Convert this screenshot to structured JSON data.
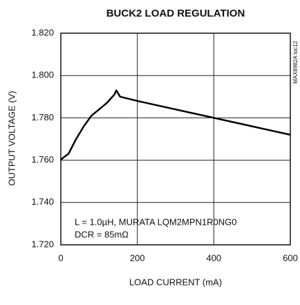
{
  "chart_data": {
    "type": "line",
    "title": "BUCK2 LOAD REGULATION",
    "xlabel": "LOAD CURRENT (mA)",
    "ylabel": "OUTPUT VOLTAGE (V)",
    "annotations": [
      "L = 1.0µH, MURATA LQM2MPN1R0NG0",
      "DCR = 85mΩ"
    ],
    "side_note": "MAX8982A toc12",
    "x": [
      0,
      5,
      20,
      40,
      60,
      80,
      100,
      120,
      140,
      145,
      155,
      200,
      300,
      400,
      500,
      600
    ],
    "series": [
      {
        "name": null,
        "color": "#000000",
        "values": [
          1.76,
          1.761,
          1.763,
          1.77,
          1.776,
          1.781,
          1.784,
          1.787,
          1.791,
          1.793,
          1.79,
          1.788,
          1.784,
          1.78,
          1.776,
          1.772
        ]
      }
    ],
    "xlim": [
      0,
      600
    ],
    "xticks": [
      0,
      200,
      400,
      600
    ],
    "ylim": [
      1.72,
      1.82
    ],
    "yticks": [
      {
        "value": 1.72,
        "label": "1.720"
      },
      {
        "value": 1.74,
        "label": "1.740"
      },
      {
        "value": 1.76,
        "label": "1.760"
      },
      {
        "value": 1.78,
        "label": "1.780"
      },
      {
        "value": 1.8,
        "label": "1.800"
      },
      {
        "value": 1.82,
        "label": "1.820"
      }
    ],
    "grid": true
  }
}
